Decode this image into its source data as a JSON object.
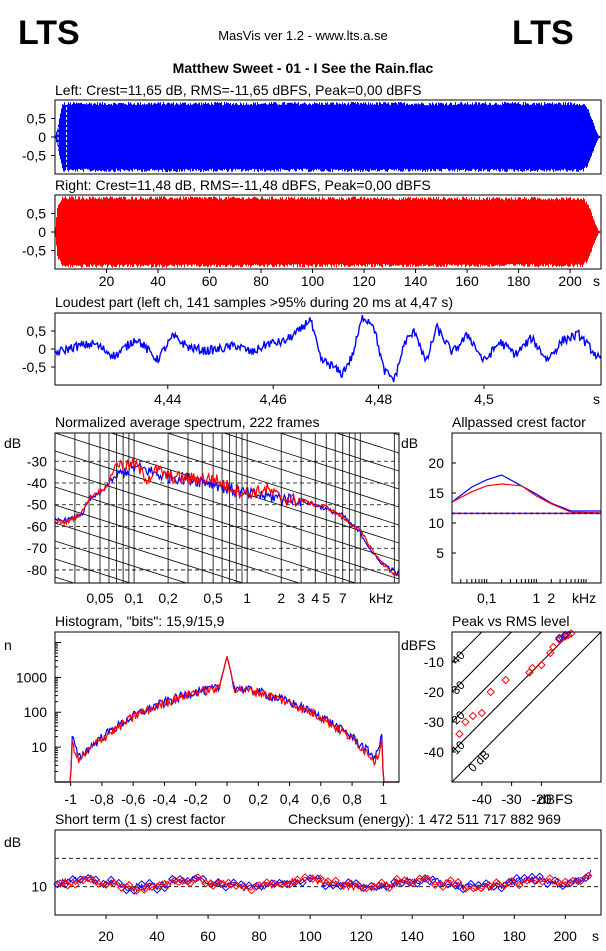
{
  "header": {
    "logo_left": "LTS",
    "logo_right": "LTS",
    "app_title": "MasVis ver 1.2 - www.lts.a.se",
    "track_title": "Matthew Sweet - 01 - I See the Rain.flac"
  },
  "colors": {
    "left": "#0000ff",
    "right": "#ff0000",
    "axis": "#000000"
  },
  "chart_data": [
    {
      "id": "left_waveform",
      "type": "area",
      "title": "Left: Crest=11,65 dB, RMS=-11,65 dBFS, Peak=0,00 dBFS",
      "ytick_labels": [
        "0,5",
        "0",
        "-0,5"
      ],
      "ylim": [
        -1,
        1
      ],
      "xlim": [
        0,
        212
      ],
      "envelope": {
        "x": [
          0,
          1,
          3,
          205,
          207,
          208.5,
          210,
          211,
          212
        ],
        "y": [
          0,
          0.25,
          0.95,
          0.95,
          0.8,
          0.5,
          0.2,
          0.05,
          0
        ]
      },
      "markers_x": [
        1.2,
        4.5
      ]
    },
    {
      "id": "right_waveform",
      "type": "area",
      "title": "Right: Crest=11,48 dB, RMS=-11,48 dBFS, Peak=0,00 dBFS",
      "ytick_labels": [
        "0,5",
        "0",
        "-0,5"
      ],
      "ylim": [
        -1,
        1
      ],
      "xlim": [
        0,
        212
      ],
      "envelope": {
        "x": [
          0,
          1,
          3,
          205,
          207,
          208.5,
          210,
          211,
          212
        ],
        "y": [
          0,
          0.7,
          0.97,
          0.95,
          0.8,
          0.5,
          0.2,
          0.05,
          0
        ]
      },
      "xticks": [
        20,
        40,
        60,
        80,
        100,
        120,
        140,
        160,
        180,
        200
      ],
      "xtick_labels": [
        "20",
        "40",
        "60",
        "80",
        "100",
        "120",
        "140",
        "160",
        "180",
        "200"
      ],
      "xlabel": "s"
    },
    {
      "id": "loudest_part",
      "type": "line",
      "title": "Loudest part (left  ch, 141 samples >95% during 20 ms at 4,47 s)",
      "ytick_labels": [
        "0,5",
        "0",
        "-0,5"
      ],
      "ylim": [
        -1,
        1
      ],
      "xlim": [
        4.4186,
        4.5222
      ],
      "xticks": [
        4.44,
        4.46,
        4.48,
        4.5
      ],
      "xtick_labels": [
        "4,44",
        "4,46",
        "4,48",
        "4,5"
      ],
      "xlabel": "s",
      "x": [
        4.419,
        4.422,
        4.426,
        4.43,
        4.434,
        4.438,
        4.441,
        4.444,
        4.447,
        4.45,
        4.453,
        4.456,
        4.459,
        4.462,
        4.465,
        4.467,
        4.469,
        4.471,
        4.473,
        4.475,
        4.477,
        4.479,
        4.481,
        4.483,
        4.485,
        4.487,
        4.489,
        4.491,
        4.494,
        4.497,
        4.5,
        4.503,
        4.506,
        4.509,
        4.512,
        4.515,
        4.518,
        4.522
      ],
      "y": [
        -0.1,
        0.05,
        0.15,
        -0.2,
        0.3,
        -0.3,
        0.35,
        0.05,
        -0.05,
        0.0,
        0.1,
        -0.1,
        0.15,
        0.2,
        0.5,
        0.85,
        -0.3,
        -0.45,
        -0.7,
        -0.2,
        0.9,
        0.7,
        -0.6,
        -0.85,
        0.2,
        0.5,
        -0.4,
        0.6,
        -0.1,
        0.4,
        -0.35,
        0.2,
        -0.15,
        0.3,
        -0.3,
        0.25,
        0.4,
        -0.3
      ]
    },
    {
      "id": "spectrum",
      "type": "line",
      "title": "Normalized average spectrum, 222 frames",
      "ylabel": "dB",
      "ytick_labels": [
        "-30",
        "-40",
        "-50",
        "-60",
        "-70",
        "-80"
      ],
      "ytick_values": [
        -30,
        -40,
        -50,
        -60,
        -70,
        -80
      ],
      "ylim": [
        -86,
        -17
      ],
      "xlim_khz": [
        0.02,
        22
      ],
      "log_x": true,
      "grid": true,
      "xticks_khz": [
        0.05,
        0.1,
        0.2,
        0.5,
        1,
        2,
        3,
        4,
        5,
        7
      ],
      "xtick_labels": [
        "0,05",
        "0,1",
        "0,2",
        "0,5",
        "1",
        "2",
        "3",
        "4",
        "5",
        "7"
      ],
      "xlabel": "kHz",
      "series": [
        {
          "color": "#0000ff",
          "x": [
            0.02,
            0.025,
            0.03,
            0.035,
            0.04,
            0.045,
            0.05,
            0.06,
            0.07,
            0.08,
            0.1,
            0.13,
            0.16,
            0.2,
            0.3,
            0.5,
            0.7,
            1,
            1.5,
            2,
            3,
            4,
            5,
            7,
            10,
            14,
            18,
            22
          ],
          "y": [
            -57,
            -57,
            -56,
            -54,
            -48,
            -46,
            -45,
            -40,
            -37,
            -35,
            -33,
            -34,
            -36,
            -37,
            -38,
            -40,
            -43,
            -45,
            -46,
            -47,
            -48,
            -50,
            -52,
            -55,
            -63,
            -75,
            -79,
            -82
          ]
        },
        {
          "color": "#ff0000",
          "x": [
            0.02,
            0.025,
            0.03,
            0.035,
            0.04,
            0.045,
            0.05,
            0.06,
            0.07,
            0.08,
            0.1,
            0.13,
            0.16,
            0.2,
            0.3,
            0.5,
            0.7,
            1,
            1.5,
            2,
            3,
            4,
            5,
            7,
            10,
            14,
            18,
            22
          ],
          "y": [
            -58,
            -58,
            -56,
            -53,
            -47,
            -45,
            -44,
            -40,
            -30,
            -33,
            -31,
            -38,
            -34,
            -37,
            -38,
            -38,
            -42,
            -45,
            -43,
            -47,
            -48,
            -50,
            -51,
            -56,
            -62,
            -74,
            -80,
            -83
          ]
        }
      ]
    },
    {
      "id": "allpassed_crest",
      "type": "line",
      "title": "Allpassed crest factor",
      "ylabel": "dB",
      "ytick_labels": [
        "20",
        "15",
        "10",
        "5"
      ],
      "ytick_values": [
        20,
        15,
        10,
        5
      ],
      "ylim": [
        0,
        25
      ],
      "log_x": true,
      "xlim_khz": [
        0.02,
        20
      ],
      "xticks_khz": [
        0.1,
        1,
        2
      ],
      "xtick_labels": [
        "0,1",
        "1",
        "2"
      ],
      "xlabel": "kHz",
      "reference_db": 11.6,
      "series": [
        {
          "color": "#0000ff",
          "x": [
            0.02,
            0.05,
            0.1,
            0.2,
            0.5,
            1,
            2,
            5,
            20
          ],
          "y": [
            13.5,
            16,
            17.2,
            18,
            16.2,
            14.8,
            13.3,
            12,
            12
          ]
        },
        {
          "color": "#ff0000",
          "x": [
            0.02,
            0.05,
            0.1,
            0.2,
            0.5,
            1,
            2,
            5,
            20
          ],
          "y": [
            13.5,
            15.2,
            16.2,
            16.5,
            16.2,
            14.5,
            13.2,
            11.8,
            11.7
          ]
        }
      ]
    },
    {
      "id": "histogram",
      "type": "line",
      "title": "Histogram, \"bits\": 15,9/15,9",
      "ylabel": "n",
      "log_y": true,
      "ylim": [
        1,
        20000
      ],
      "ytick_values": [
        10,
        100,
        1000
      ],
      "ytick_labels": [
        "10",
        "100",
        "1000"
      ],
      "xlim": [
        -1.1,
        1.1
      ],
      "xticks": [
        -1,
        -0.8,
        -0.6,
        -0.4,
        -0.2,
        0,
        0.2,
        0.4,
        0.6,
        0.8,
        1
      ],
      "xtick_labels": [
        "-1",
        "-0,8",
        "-0,6",
        "-0,4",
        "-0,2",
        "0",
        "0,2",
        "0,4",
        "0,6",
        "0,8",
        "1"
      ],
      "series": [
        {
          "color": "#0000ff",
          "x": [
            -1.1,
            -1.0,
            -0.99,
            -0.95,
            -0.9,
            -0.8,
            -0.6,
            -0.4,
            -0.2,
            -0.05,
            0,
            0.05,
            0.2,
            0.4,
            0.6,
            0.8,
            0.9,
            0.95,
            0.99,
            1.0,
            1.1
          ],
          "y": [
            1,
            1,
            20,
            5,
            8,
            20,
            80,
            200,
            400,
            500,
            4000,
            500,
            400,
            200,
            80,
            20,
            8,
            5,
            20,
            1,
            1
          ]
        },
        {
          "color": "#ff0000",
          "x": [
            -1.1,
            -1.0,
            -0.99,
            -0.95,
            -0.9,
            -0.8,
            -0.6,
            -0.4,
            -0.2,
            -0.05,
            0,
            0.05,
            0.2,
            0.4,
            0.6,
            0.8,
            0.9,
            0.95,
            0.99,
            1.0,
            1.1
          ],
          "y": [
            1,
            1,
            15,
            4,
            7,
            18,
            75,
            190,
            390,
            480,
            4000,
            480,
            390,
            190,
            75,
            18,
            7,
            4,
            15,
            1,
            1
          ]
        }
      ]
    },
    {
      "id": "peak_vs_rms",
      "type": "scatter",
      "title": "Peak vs RMS level",
      "ylabel": "dBFS",
      "xlabel": "dBFS",
      "xlim": [
        -50,
        0
      ],
      "ylim": [
        -50,
        0
      ],
      "xticks": [
        -40,
        -30,
        -20
      ],
      "xtick_labels": [
        "-40",
        "-30",
        "-20"
      ],
      "ytick_values": [
        -10,
        -20,
        -30,
        -40
      ],
      "ytick_labels": [
        "-10",
        "-20",
        "-30",
        "-40"
      ],
      "crest_line_labels": [
        "40",
        "30",
        "20",
        "10",
        "0 dB"
      ],
      "series": [
        {
          "color": "#ff0000",
          "x": [
            -47.5,
            -45.5,
            -43,
            -40,
            -37,
            -32,
            -24,
            -23,
            -20,
            -17,
            -16,
            -14,
            -13,
            -12,
            -11,
            -10
          ],
          "y": [
            -34,
            -30,
            -28,
            -27,
            -20,
            -16,
            -13.5,
            -12,
            -11,
            -7,
            -5,
            -2.5,
            -2,
            -1.5,
            -1,
            -0.5
          ]
        },
        {
          "color": "#0000ff",
          "x": [
            -14,
            -12
          ],
          "y": [
            -2,
            -1
          ]
        }
      ]
    },
    {
      "id": "short_term_crest",
      "type": "scatter",
      "title": "Short term (1 s) crest factor",
      "subtitle": "Checksum (energy):  1 472 511 717 882 969",
      "ylabel": "dB",
      "ylim": [
        5,
        20
      ],
      "ytick_values": [
        10
      ],
      "ytick_labels": [
        "10"
      ],
      "dashed_y": [
        10,
        15
      ],
      "xlim": [
        0,
        214
      ],
      "xticks": [
        20,
        40,
        60,
        80,
        100,
        120,
        140,
        160,
        180,
        200
      ],
      "xtick_labels": [
        "20",
        "40",
        "60",
        "80",
        "100",
        "120",
        "140",
        "160",
        "180",
        "200"
      ],
      "xlabel": "s"
    }
  ]
}
